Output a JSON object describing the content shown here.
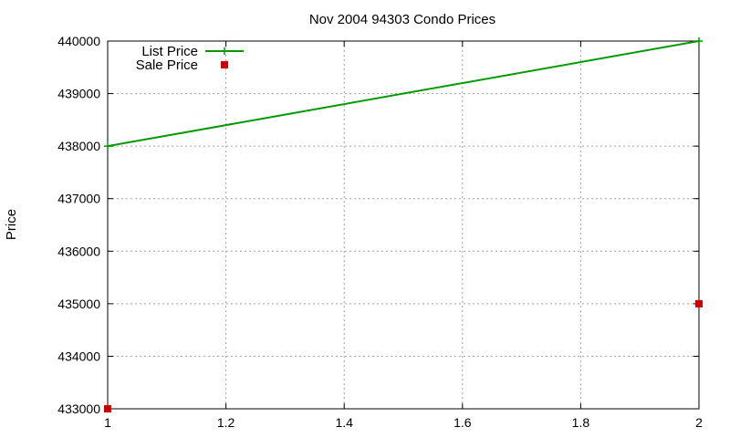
{
  "chart_data": {
    "type": "line",
    "title": "Nov 2004 94303 Condo Prices",
    "xlabel": "",
    "ylabel": "Price",
    "xlim": [
      1,
      2
    ],
    "ylim": [
      433000,
      440000
    ],
    "xticks": [
      1,
      1.2,
      1.4,
      1.6,
      1.8,
      2
    ],
    "xtick_labels": [
      "1",
      "1.2",
      "1.4",
      "1.6",
      "1.8",
      "2"
    ],
    "yticks": [
      433000,
      434000,
      435000,
      436000,
      437000,
      438000,
      439000,
      440000
    ],
    "ytick_labels": [
      "433000",
      "434000",
      "435000",
      "436000",
      "437000",
      "438000",
      "439000",
      "440000"
    ],
    "grid": true,
    "legend_position": "top-left",
    "series": [
      {
        "name": "List Price",
        "style": "linespoints",
        "color": "#009900",
        "x": [
          1,
          2
        ],
        "y": [
          438000,
          440000
        ]
      },
      {
        "name": "Sale Price",
        "style": "points",
        "color": "#cc0000",
        "x": [
          1,
          2
        ],
        "y": [
          433000,
          435000
        ]
      }
    ]
  }
}
